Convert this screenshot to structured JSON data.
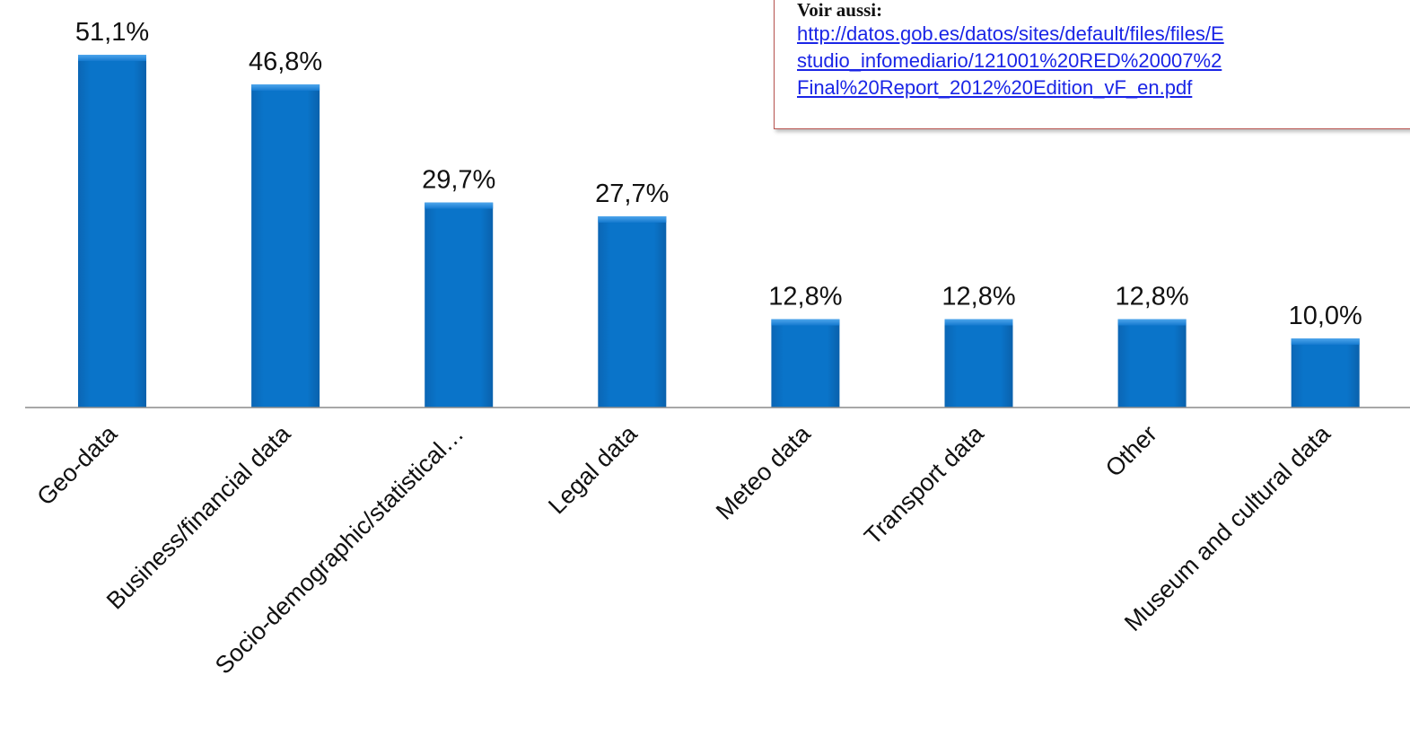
{
  "note": {
    "title": "Voir aussi:",
    "link_lines": [
      "http://datos.gob.es/datos/sites/default/files/files/E",
      "studio_infomediario/121001%20RED%20007%2",
      "Final%20Report_2012%20Edition_vF_en.pdf"
    ]
  },
  "chart_data": {
    "type": "bar",
    "categories": [
      "Geo-data",
      "Business/financial data",
      "Socio-demographic/statistical…",
      "Legal data",
      "Meteo data",
      "Transport data",
      "Other",
      "Museum and cultural data"
    ],
    "values": [
      51.1,
      46.8,
      29.7,
      27.7,
      12.8,
      12.8,
      12.8,
      10.0
    ],
    "data_labels": [
      "51,1%",
      "46,8%",
      "29,7%",
      "27,7%",
      "12,8%",
      "12,8%",
      "12,8%",
      "10,0%"
    ],
    "title": "",
    "xlabel": "",
    "ylabel": "",
    "ylim": [
      0,
      58
    ],
    "grid": false,
    "bar_color": "#0a74c9",
    "bar_color_dark": "#0b5fa5",
    "bar_color_light": "#3a9ae6"
  }
}
